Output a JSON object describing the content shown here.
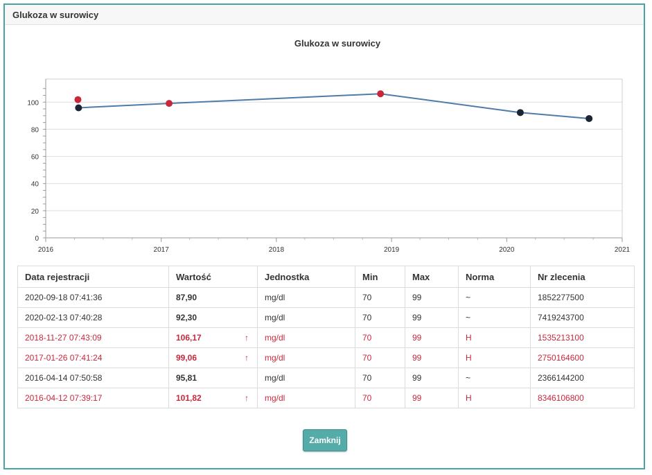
{
  "window": {
    "title": "Glukoza w surowicy"
  },
  "chart_data": {
    "type": "line",
    "title": "Glukoza w surowicy",
    "xlabel": "",
    "ylabel": "",
    "x_ticks": [
      "2016",
      "2017",
      "2018",
      "2019",
      "2020",
      "2021"
    ],
    "y_ticks": [
      "0",
      "20",
      "40",
      "60",
      "80",
      "100"
    ],
    "xlim": [
      "2016-01-01",
      "2021-01-01"
    ],
    "ylim": [
      0,
      117
    ],
    "grid": true,
    "series": [
      {
        "points": [
          {
            "x": "2016-04-14",
            "y": 95.81,
            "status": "normal"
          },
          {
            "x": "2017-01-26",
            "y": 99.06,
            "status": "high"
          },
          {
            "x": "2018-11-27",
            "y": 106.17,
            "status": "high"
          },
          {
            "x": "2020-02-13",
            "y": 92.3,
            "status": "normal"
          },
          {
            "x": "2020-09-18",
            "y": 87.9,
            "status": "normal"
          }
        ]
      }
    ],
    "extra_points": [
      {
        "x": "2016-04-12",
        "y": 101.82,
        "status": "high"
      }
    ],
    "colors": {
      "line": "#4f7ba8",
      "high": "#c8283c",
      "normal": "#1c2535"
    }
  },
  "table": {
    "headers": [
      "Data rejestracji",
      "Wartość",
      "Jednostka",
      "Min",
      "Max",
      "Norma",
      "Nr zlecenia"
    ],
    "rows": [
      {
        "date": "2020-09-18 07:41:36",
        "value": "87,90",
        "arrow": "",
        "unit": "mg/dl",
        "min": "70",
        "max": "99",
        "norm": "~",
        "order": "1852277500",
        "abnormal": false
      },
      {
        "date": "2020-02-13 07:40:28",
        "value": "92,30",
        "arrow": "",
        "unit": "mg/dl",
        "min": "70",
        "max": "99",
        "norm": "~",
        "order": "7419243700",
        "abnormal": false
      },
      {
        "date": "2018-11-27 07:43:09",
        "value": "106,17",
        "arrow": "↑",
        "unit": "mg/dl",
        "min": "70",
        "max": "99",
        "norm": "H",
        "order": "1535213100",
        "abnormal": true
      },
      {
        "date": "2017-01-26 07:41:24",
        "value": "99,06",
        "arrow": "↑",
        "unit": "mg/dl",
        "min": "70",
        "max": "99",
        "norm": "H",
        "order": "2750164600",
        "abnormal": true
      },
      {
        "date": "2016-04-14 07:50:58",
        "value": "95,81",
        "arrow": "",
        "unit": "mg/dl",
        "min": "70",
        "max": "99",
        "norm": "~",
        "order": "2366144200",
        "abnormal": false
      },
      {
        "date": "2016-04-12 07:39:17",
        "value": "101,82",
        "arrow": "↑",
        "unit": "mg/dl",
        "min": "70",
        "max": "99",
        "norm": "H",
        "order": "8346106800",
        "abnormal": true
      }
    ]
  },
  "close_button": {
    "label": "Zamknij"
  }
}
